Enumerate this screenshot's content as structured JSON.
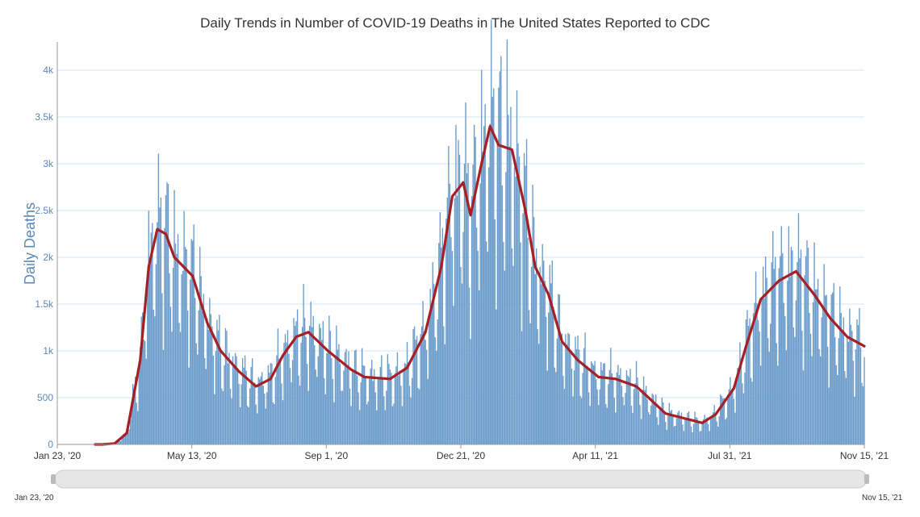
{
  "chart_data": {
    "type": "bar",
    "title": "Daily Trends in Number of COVID-19 Deaths in The United States Reported to CDC",
    "xlabel": "",
    "ylabel": "Daily Deaths",
    "x_range": [
      "2020-01-23",
      "2021-11-15"
    ],
    "ylim": [
      0,
      4250
    ],
    "y_ticks": [
      0,
      500,
      1000,
      1500,
      2000,
      2500,
      3000,
      3500,
      4000
    ],
    "y_tick_labels": [
      "0",
      "500",
      "1k",
      "1.5k",
      "2k",
      "2.5k",
      "3k",
      "3.5k",
      "4k"
    ],
    "x_tick_labels": [
      "Jan 23, '20",
      "May 13, '20",
      "Sep 1, '20",
      "Dec 21, '20",
      "Apr 11, '21",
      "Jul 31, '21",
      "Nov 15, '21"
    ],
    "grid": true,
    "navigator": {
      "start_label": "Jan 23, '20",
      "end_label": "Nov 15, '21"
    },
    "colors": {
      "bars": "#6a9bca",
      "moving_average": "#a51f24",
      "grid": "#d6e4ef",
      "axis_text": "#5b88b5"
    },
    "series": [
      {
        "type": "bar",
        "encoding": "daily deaths by date, piecewise-linear anchors (date, deaths); weekly reporting fluctuation visible",
        "anchors": [
          [
            "2020-01-23",
            0
          ],
          [
            "2020-02-29",
            0
          ],
          [
            "2020-03-10",
            10
          ],
          [
            "2020-03-20",
            120
          ],
          [
            "2020-03-31",
            900
          ],
          [
            "2020-04-07",
            1900
          ],
          [
            "2020-04-14",
            2300
          ],
          [
            "2020-04-21",
            2250
          ],
          [
            "2020-04-28",
            2000
          ],
          [
            "2020-05-13",
            1800
          ],
          [
            "2020-05-25",
            1300
          ],
          [
            "2020-06-05",
            1000
          ],
          [
            "2020-06-20",
            780
          ],
          [
            "2020-07-04",
            620
          ],
          [
            "2020-07-16",
            700
          ],
          [
            "2020-07-26",
            950
          ],
          [
            "2020-08-06",
            1150
          ],
          [
            "2020-08-16",
            1200
          ],
          [
            "2020-09-01",
            1000
          ],
          [
            "2020-09-20",
            800
          ],
          [
            "2020-10-01",
            720
          ],
          [
            "2020-10-22",
            700
          ],
          [
            "2020-11-05",
            820
          ],
          [
            "2020-11-20",
            1200
          ],
          [
            "2020-12-03",
            1900
          ],
          [
            "2020-12-12",
            2650
          ],
          [
            "2020-12-21",
            2800
          ],
          [
            "2020-12-27",
            2450
          ],
          [
            "2021-01-05",
            3000
          ],
          [
            "2021-01-12",
            3400
          ],
          [
            "2021-01-19",
            3200
          ],
          [
            "2021-01-30",
            3150
          ],
          [
            "2021-02-10",
            2500
          ],
          [
            "2021-02-18",
            1900
          ],
          [
            "2021-03-01",
            1600
          ],
          [
            "2021-03-12",
            1100
          ],
          [
            "2021-03-25",
            900
          ],
          [
            "2021-04-11",
            720
          ],
          [
            "2021-04-25",
            700
          ],
          [
            "2021-05-12",
            620
          ],
          [
            "2021-05-22",
            500
          ],
          [
            "2021-06-05",
            330
          ],
          [
            "2021-06-20",
            280
          ],
          [
            "2021-07-05",
            230
          ],
          [
            "2021-07-16",
            320
          ],
          [
            "2021-07-31",
            600
          ],
          [
            "2021-08-10",
            1050
          ],
          [
            "2021-08-22",
            1550
          ],
          [
            "2021-09-06",
            1750
          ],
          [
            "2021-09-20",
            1850
          ],
          [
            "2021-10-05",
            1600
          ],
          [
            "2021-10-18",
            1350
          ],
          [
            "2021-11-01",
            1150
          ],
          [
            "2021-11-15",
            1050
          ]
        ]
      },
      {
        "type": "line",
        "encoding": "7-day moving average of deaths by date, piecewise-linear anchors (date, deaths)",
        "anchors": [
          [
            "2020-01-23",
            0
          ],
          [
            "2020-02-29",
            0
          ],
          [
            "2020-03-10",
            10
          ],
          [
            "2020-03-20",
            120
          ],
          [
            "2020-03-31",
            900
          ],
          [
            "2020-04-07",
            1900
          ],
          [
            "2020-04-14",
            2300
          ],
          [
            "2020-04-21",
            2250
          ],
          [
            "2020-04-28",
            2000
          ],
          [
            "2020-05-13",
            1800
          ],
          [
            "2020-05-25",
            1300
          ],
          [
            "2020-06-05",
            1000
          ],
          [
            "2020-06-20",
            780
          ],
          [
            "2020-07-04",
            620
          ],
          [
            "2020-07-16",
            700
          ],
          [
            "2020-07-26",
            950
          ],
          [
            "2020-08-06",
            1150
          ],
          [
            "2020-08-16",
            1200
          ],
          [
            "2020-09-01",
            1000
          ],
          [
            "2020-09-20",
            800
          ],
          [
            "2020-10-01",
            720
          ],
          [
            "2020-10-22",
            700
          ],
          [
            "2020-11-05",
            820
          ],
          [
            "2020-11-20",
            1200
          ],
          [
            "2020-12-03",
            1900
          ],
          [
            "2020-12-12",
            2650
          ],
          [
            "2020-12-21",
            2800
          ],
          [
            "2020-12-27",
            2450
          ],
          [
            "2021-01-05",
            3000
          ],
          [
            "2021-01-12",
            3400
          ],
          [
            "2021-01-19",
            3200
          ],
          [
            "2021-01-30",
            3150
          ],
          [
            "2021-02-10",
            2500
          ],
          [
            "2021-02-18",
            1900
          ],
          [
            "2021-03-01",
            1600
          ],
          [
            "2021-03-12",
            1100
          ],
          [
            "2021-03-25",
            900
          ],
          [
            "2021-04-11",
            720
          ],
          [
            "2021-04-25",
            700
          ],
          [
            "2021-05-12",
            620
          ],
          [
            "2021-05-22",
            500
          ],
          [
            "2021-06-05",
            330
          ],
          [
            "2021-06-20",
            280
          ],
          [
            "2021-07-05",
            230
          ],
          [
            "2021-07-16",
            320
          ],
          [
            "2021-07-31",
            600
          ],
          [
            "2021-08-10",
            1050
          ],
          [
            "2021-08-22",
            1550
          ],
          [
            "2021-09-06",
            1750
          ],
          [
            "2021-09-20",
            1850
          ],
          [
            "2021-10-05",
            1600
          ],
          [
            "2021-10-18",
            1350
          ],
          [
            "2021-11-01",
            1150
          ],
          [
            "2021-11-15",
            1050
          ]
        ]
      }
    ]
  }
}
